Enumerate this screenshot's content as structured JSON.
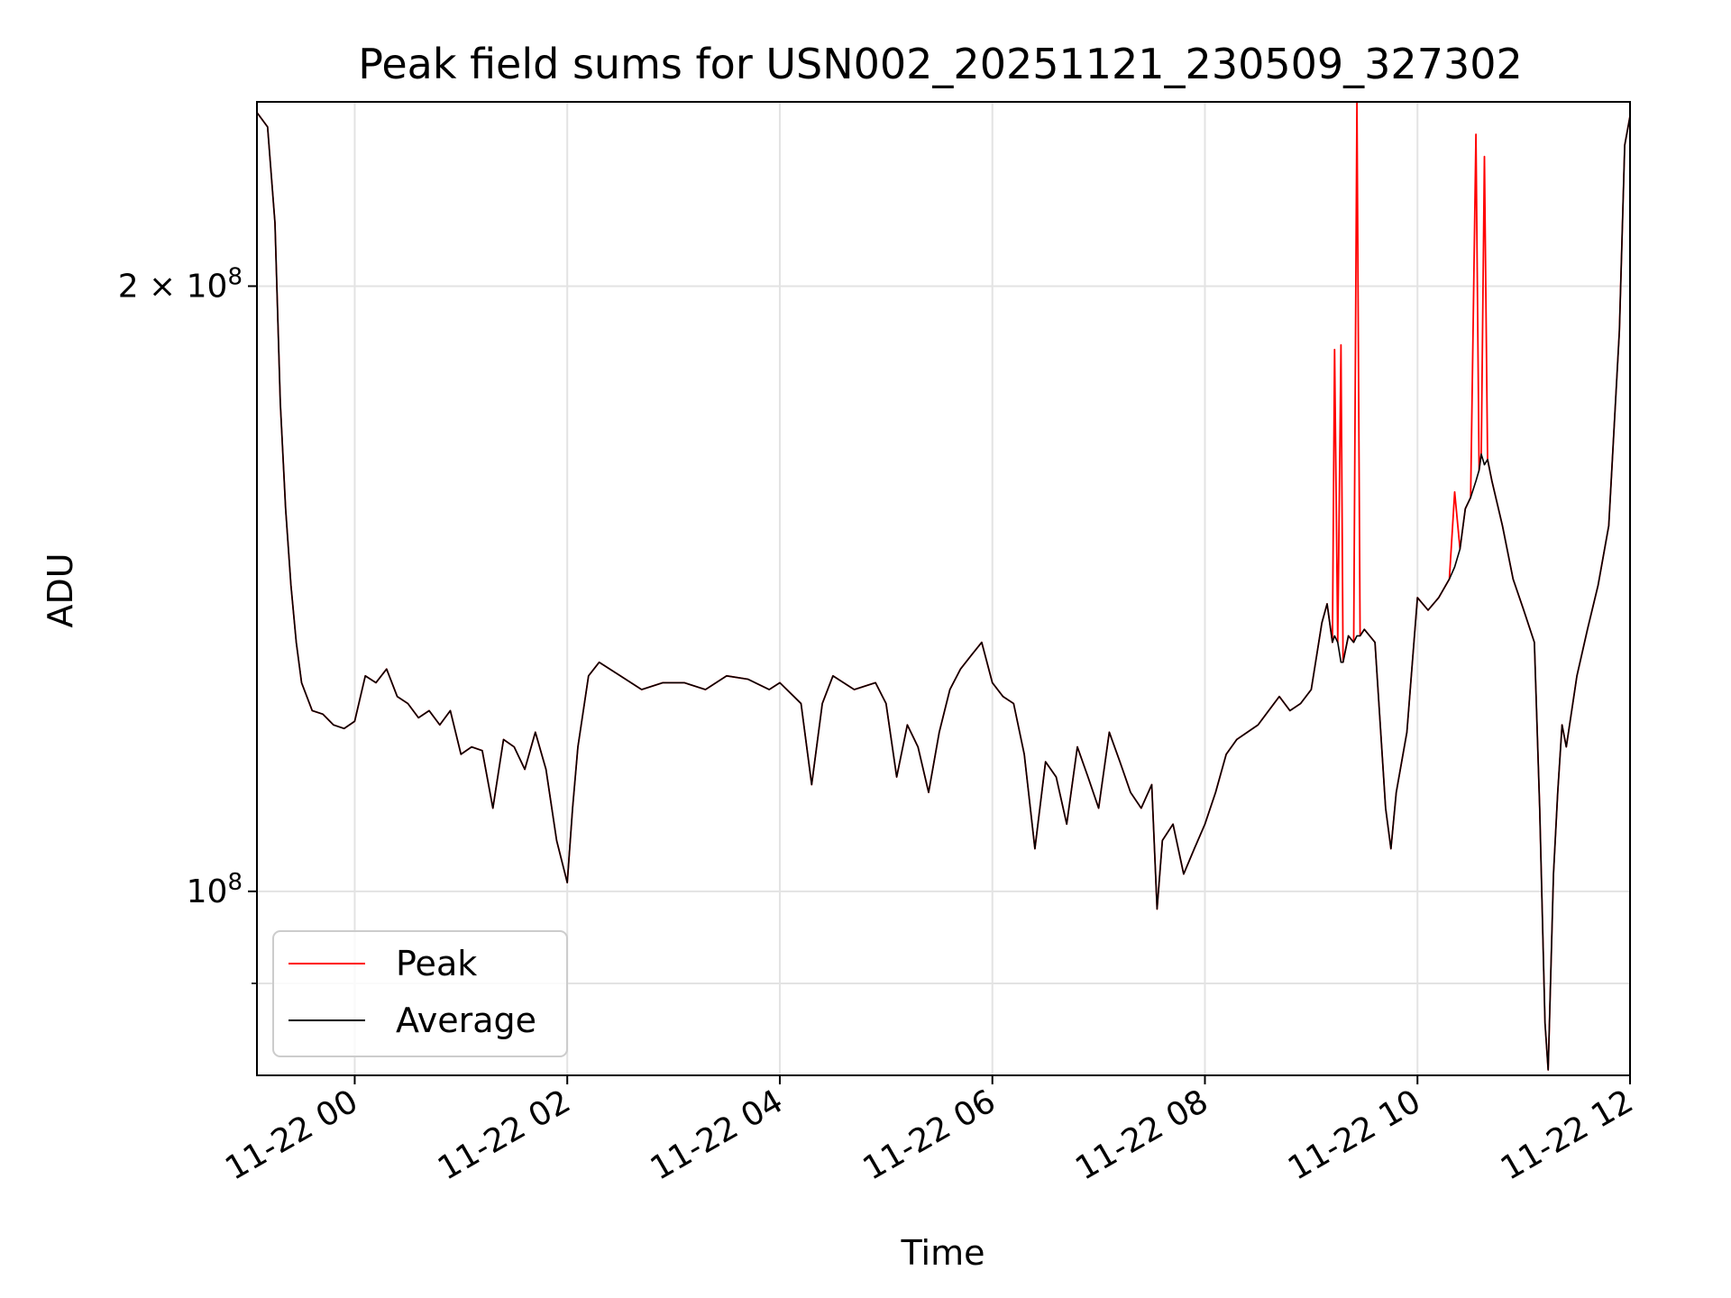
{
  "chart_data": {
    "type": "line",
    "title": "Peak field sums for USN002_20251121_230509_327302",
    "xlabel": "Time",
    "ylabel": "ADU",
    "yscale": "log",
    "grid": true,
    "legend_position": "lower-left",
    "xlim_hours": [
      -0.92,
      12.0
    ],
    "ylim": [
      81000000,
      247000000
    ],
    "x_ticks": [
      {
        "hour": 0,
        "label": "11-22 00"
      },
      {
        "hour": 2,
        "label": "11-22 02"
      },
      {
        "hour": 4,
        "label": "11-22 04"
      },
      {
        "hour": 6,
        "label": "11-22 06"
      },
      {
        "hour": 8,
        "label": "11-22 08"
      },
      {
        "hour": 10,
        "label": "11-22 10"
      },
      {
        "hour": 12,
        "label": "11-22 12"
      }
    ],
    "y_ticks": [
      {
        "value": 100000000,
        "label": "10",
        "exp": "8"
      },
      {
        "value": 200000000,
        "label": "2 × 10",
        "exp": "8"
      }
    ],
    "y_minor_ticks": [
      90000000
    ],
    "series": [
      {
        "name": "Peak",
        "color": "#ff0000",
        "points": [
          [
            -0.92,
            244000000
          ],
          [
            -0.82,
            240000000
          ],
          [
            -0.75,
            215000000
          ],
          [
            -0.7,
            175000000
          ],
          [
            -0.65,
            155000000
          ],
          [
            -0.6,
            142000000
          ],
          [
            -0.55,
            133000000
          ],
          [
            -0.5,
            127000000
          ],
          [
            -0.4,
            123000000
          ],
          [
            -0.3,
            122500000
          ],
          [
            -0.2,
            121000000
          ],
          [
            -0.1,
            120500000
          ],
          [
            0.0,
            121500000
          ],
          [
            0.1,
            128000000
          ],
          [
            0.2,
            127000000
          ],
          [
            0.3,
            129000000
          ],
          [
            0.4,
            125000000
          ],
          [
            0.5,
            124000000
          ],
          [
            0.6,
            122000000
          ],
          [
            0.7,
            123000000
          ],
          [
            0.8,
            121000000
          ],
          [
            0.9,
            123000000
          ],
          [
            1.0,
            117000000
          ],
          [
            1.1,
            118000000
          ],
          [
            1.2,
            117500000
          ],
          [
            1.3,
            110000000
          ],
          [
            1.4,
            119000000
          ],
          [
            1.5,
            118000000
          ],
          [
            1.6,
            115000000
          ],
          [
            1.7,
            120000000
          ],
          [
            1.8,
            115000000
          ],
          [
            1.9,
            106000000
          ],
          [
            2.0,
            101000000
          ],
          [
            2.05,
            110000000
          ],
          [
            2.1,
            118000000
          ],
          [
            2.2,
            128000000
          ],
          [
            2.3,
            130000000
          ],
          [
            2.5,
            128000000
          ],
          [
            2.7,
            126000000
          ],
          [
            2.9,
            127000000
          ],
          [
            3.1,
            127000000
          ],
          [
            3.3,
            126000000
          ],
          [
            3.5,
            128000000
          ],
          [
            3.7,
            127500000
          ],
          [
            3.9,
            126000000
          ],
          [
            4.0,
            127000000
          ],
          [
            4.2,
            124000000
          ],
          [
            4.3,
            113000000
          ],
          [
            4.4,
            124000000
          ],
          [
            4.5,
            128000000
          ],
          [
            4.7,
            126000000
          ],
          [
            4.9,
            127000000
          ],
          [
            5.0,
            124000000
          ],
          [
            5.1,
            114000000
          ],
          [
            5.2,
            121000000
          ],
          [
            5.3,
            118000000
          ],
          [
            5.4,
            112000000
          ],
          [
            5.5,
            120000000
          ],
          [
            5.6,
            126000000
          ],
          [
            5.7,
            129000000
          ],
          [
            5.8,
            131000000
          ],
          [
            5.9,
            133000000
          ],
          [
            6.0,
            127000000
          ],
          [
            6.1,
            125000000
          ],
          [
            6.2,
            124000000
          ],
          [
            6.3,
            117000000
          ],
          [
            6.4,
            105000000
          ],
          [
            6.5,
            116000000
          ],
          [
            6.6,
            114000000
          ],
          [
            6.7,
            108000000
          ],
          [
            6.8,
            118000000
          ],
          [
            6.9,
            114000000
          ],
          [
            7.0,
            110000000
          ],
          [
            7.1,
            120000000
          ],
          [
            7.2,
            116000000
          ],
          [
            7.3,
            112000000
          ],
          [
            7.4,
            110000000
          ],
          [
            7.5,
            113000000
          ],
          [
            7.55,
            98000000
          ],
          [
            7.6,
            106000000
          ],
          [
            7.7,
            108000000
          ],
          [
            7.8,
            102000000
          ],
          [
            7.9,
            105000000
          ],
          [
            8.0,
            108000000
          ],
          [
            8.1,
            112000000
          ],
          [
            8.2,
            117000000
          ],
          [
            8.3,
            119000000
          ],
          [
            8.4,
            120000000
          ],
          [
            8.5,
            121000000
          ],
          [
            8.6,
            123000000
          ],
          [
            8.7,
            125000000
          ],
          [
            8.8,
            123000000
          ],
          [
            8.9,
            124000000
          ],
          [
            9.0,
            126000000
          ],
          [
            9.1,
            136000000
          ],
          [
            9.15,
            139000000
          ],
          [
            9.2,
            133000000
          ],
          [
            9.22,
            186000000
          ],
          [
            9.25,
            133000000
          ],
          [
            9.28,
            187000000
          ],
          [
            9.3,
            130000000
          ],
          [
            9.35,
            134000000
          ],
          [
            9.4,
            133000000
          ],
          [
            9.43,
            250000000
          ],
          [
            9.46,
            134000000
          ],
          [
            9.5,
            135000000
          ],
          [
            9.6,
            133000000
          ],
          [
            9.7,
            110000000
          ],
          [
            9.75,
            105000000
          ],
          [
            9.8,
            112000000
          ],
          [
            9.9,
            120000000
          ],
          [
            10.0,
            140000000
          ],
          [
            10.1,
            138000000
          ],
          [
            10.2,
            140000000
          ],
          [
            10.3,
            143000000
          ],
          [
            10.35,
            158000000
          ],
          [
            10.4,
            148000000
          ],
          [
            10.45,
            155000000
          ],
          [
            10.5,
            157000000
          ],
          [
            10.55,
            238000000
          ],
          [
            10.58,
            162000000
          ],
          [
            10.6,
            165000000
          ],
          [
            10.63,
            232000000
          ],
          [
            10.66,
            164000000
          ],
          [
            10.7,
            160000000
          ],
          [
            10.8,
            152000000
          ],
          [
            10.9,
            143000000
          ],
          [
            11.0,
            138000000
          ],
          [
            11.1,
            133000000
          ],
          [
            11.15,
            110000000
          ],
          [
            11.2,
            86000000
          ],
          [
            11.23,
            81500000
          ],
          [
            11.28,
            102000000
          ],
          [
            11.32,
            112000000
          ],
          [
            11.36,
            121000000
          ],
          [
            11.4,
            118000000
          ],
          [
            11.5,
            128000000
          ],
          [
            11.6,
            135000000
          ],
          [
            11.7,
            142000000
          ],
          [
            11.8,
            152000000
          ],
          [
            11.9,
            190000000
          ],
          [
            11.95,
            235000000
          ],
          [
            12.0,
            243000000
          ]
        ]
      },
      {
        "name": "Average",
        "color": "#000000",
        "points": [
          [
            -0.92,
            244000000
          ],
          [
            -0.82,
            240000000
          ],
          [
            -0.75,
            215000000
          ],
          [
            -0.7,
            175000000
          ],
          [
            -0.65,
            155000000
          ],
          [
            -0.6,
            142000000
          ],
          [
            -0.55,
            133000000
          ],
          [
            -0.5,
            127000000
          ],
          [
            -0.4,
            123000000
          ],
          [
            -0.3,
            122500000
          ],
          [
            -0.2,
            121000000
          ],
          [
            -0.1,
            120500000
          ],
          [
            0.0,
            121500000
          ],
          [
            0.1,
            128000000
          ],
          [
            0.2,
            127000000
          ],
          [
            0.3,
            129000000
          ],
          [
            0.4,
            125000000
          ],
          [
            0.5,
            124000000
          ],
          [
            0.6,
            122000000
          ],
          [
            0.7,
            123000000
          ],
          [
            0.8,
            121000000
          ],
          [
            0.9,
            123000000
          ],
          [
            1.0,
            117000000
          ],
          [
            1.1,
            118000000
          ],
          [
            1.2,
            117500000
          ],
          [
            1.3,
            110000000
          ],
          [
            1.4,
            119000000
          ],
          [
            1.5,
            118000000
          ],
          [
            1.6,
            115000000
          ],
          [
            1.7,
            120000000
          ],
          [
            1.8,
            115000000
          ],
          [
            1.9,
            106000000
          ],
          [
            2.0,
            101000000
          ],
          [
            2.05,
            110000000
          ],
          [
            2.1,
            118000000
          ],
          [
            2.2,
            128000000
          ],
          [
            2.3,
            130000000
          ],
          [
            2.5,
            128000000
          ],
          [
            2.7,
            126000000
          ],
          [
            2.9,
            127000000
          ],
          [
            3.1,
            127000000
          ],
          [
            3.3,
            126000000
          ],
          [
            3.5,
            128000000
          ],
          [
            3.7,
            127500000
          ],
          [
            3.9,
            126000000
          ],
          [
            4.0,
            127000000
          ],
          [
            4.2,
            124000000
          ],
          [
            4.3,
            113000000
          ],
          [
            4.4,
            124000000
          ],
          [
            4.5,
            128000000
          ],
          [
            4.7,
            126000000
          ],
          [
            4.9,
            127000000
          ],
          [
            5.0,
            124000000
          ],
          [
            5.1,
            114000000
          ],
          [
            5.2,
            121000000
          ],
          [
            5.3,
            118000000
          ],
          [
            5.4,
            112000000
          ],
          [
            5.5,
            120000000
          ],
          [
            5.6,
            126000000
          ],
          [
            5.7,
            129000000
          ],
          [
            5.8,
            131000000
          ],
          [
            5.9,
            133000000
          ],
          [
            6.0,
            127000000
          ],
          [
            6.1,
            125000000
          ],
          [
            6.2,
            124000000
          ],
          [
            6.3,
            117000000
          ],
          [
            6.4,
            105000000
          ],
          [
            6.5,
            116000000
          ],
          [
            6.6,
            114000000
          ],
          [
            6.7,
            108000000
          ],
          [
            6.8,
            118000000
          ],
          [
            6.9,
            114000000
          ],
          [
            7.0,
            110000000
          ],
          [
            7.1,
            120000000
          ],
          [
            7.2,
            116000000
          ],
          [
            7.3,
            112000000
          ],
          [
            7.4,
            110000000
          ],
          [
            7.5,
            113000000
          ],
          [
            7.55,
            98000000
          ],
          [
            7.6,
            106000000
          ],
          [
            7.7,
            108000000
          ],
          [
            7.8,
            102000000
          ],
          [
            7.9,
            105000000
          ],
          [
            8.0,
            108000000
          ],
          [
            8.1,
            112000000
          ],
          [
            8.2,
            117000000
          ],
          [
            8.3,
            119000000
          ],
          [
            8.4,
            120000000
          ],
          [
            8.5,
            121000000
          ],
          [
            8.6,
            123000000
          ],
          [
            8.7,
            125000000
          ],
          [
            8.8,
            123000000
          ],
          [
            8.9,
            124000000
          ],
          [
            9.0,
            126000000
          ],
          [
            9.1,
            136000000
          ],
          [
            9.15,
            139000000
          ],
          [
            9.2,
            133000000
          ],
          [
            9.22,
            134000000
          ],
          [
            9.25,
            133000000
          ],
          [
            9.28,
            130000000
          ],
          [
            9.3,
            130000000
          ],
          [
            9.35,
            134000000
          ],
          [
            9.4,
            133000000
          ],
          [
            9.43,
            134000000
          ],
          [
            9.46,
            134000000
          ],
          [
            9.5,
            135000000
          ],
          [
            9.6,
            133000000
          ],
          [
            9.7,
            110000000
          ],
          [
            9.75,
            105000000
          ],
          [
            9.8,
            112000000
          ],
          [
            9.9,
            120000000
          ],
          [
            10.0,
            140000000
          ],
          [
            10.1,
            138000000
          ],
          [
            10.2,
            140000000
          ],
          [
            10.3,
            143000000
          ],
          [
            10.35,
            145000000
          ],
          [
            10.4,
            148000000
          ],
          [
            10.45,
            155000000
          ],
          [
            10.5,
            157000000
          ],
          [
            10.55,
            160000000
          ],
          [
            10.58,
            162000000
          ],
          [
            10.6,
            165000000
          ],
          [
            10.63,
            163000000
          ],
          [
            10.66,
            164000000
          ],
          [
            10.7,
            160000000
          ],
          [
            10.8,
            152000000
          ],
          [
            10.9,
            143000000
          ],
          [
            11.0,
            138000000
          ],
          [
            11.1,
            133000000
          ],
          [
            11.15,
            110000000
          ],
          [
            11.2,
            86000000
          ],
          [
            11.23,
            81500000
          ],
          [
            11.28,
            102000000
          ],
          [
            11.32,
            112000000
          ],
          [
            11.36,
            121000000
          ],
          [
            11.4,
            118000000
          ],
          [
            11.5,
            128000000
          ],
          [
            11.6,
            135000000
          ],
          [
            11.7,
            142000000
          ],
          [
            11.8,
            152000000
          ],
          [
            11.9,
            190000000
          ],
          [
            11.95,
            235000000
          ],
          [
            12.0,
            243000000
          ]
        ]
      }
    ]
  }
}
